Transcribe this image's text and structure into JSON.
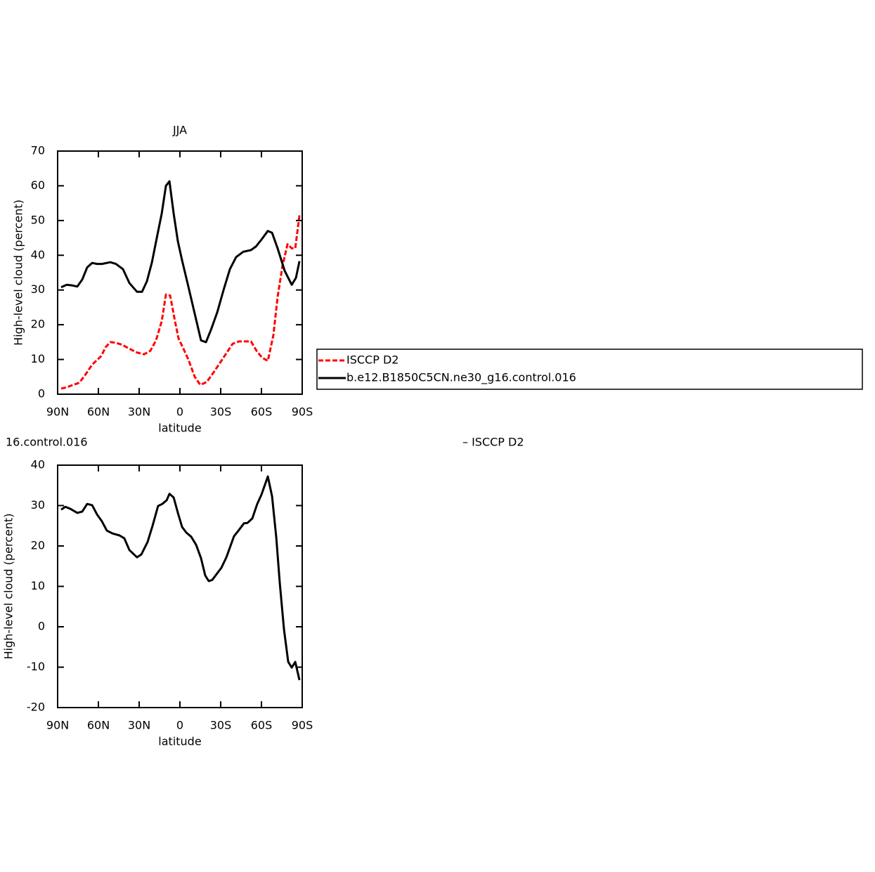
{
  "chart_data": [
    {
      "type": "line",
      "title": "JJA",
      "xlabel": "latitude",
      "ylabel": "High-level cloud (percent)",
      "xlim": [
        90,
        -90
      ],
      "xticks": [
        {
          "value": 90,
          "label": "90N"
        },
        {
          "value": 60,
          "label": "60N"
        },
        {
          "value": 30,
          "label": "30N"
        },
        0,
        {
          "value": -30,
          "label": "30S"
        },
        {
          "value": -60,
          "label": "60S"
        },
        {
          "value": -90,
          "label": "90S"
        }
      ],
      "ylim": [
        0,
        70
      ],
      "yticks": [
        0,
        10,
        20,
        30,
        40,
        50,
        60,
        70
      ],
      "legend": true,
      "series": [
        {
          "name": "ISCCP D2",
          "color": "#ff0000",
          "dash": true,
          "x": [
            87.4,
            83.3,
            79.1,
            74,
            69.8,
            64.6,
            57.9,
            54.8,
            51.2,
            47.1,
            42.4,
            36.7,
            31.6,
            26.4,
            21.7,
            17.6,
            13.4,
            10.3,
            7.2,
            3.6,
            1,
            -2.1,
            -6.2,
            -10.9,
            -15,
            -19.7,
            -24.3,
            -29.5,
            -34.2,
            -38.8,
            -43.5,
            -47.6,
            -52.3,
            -56.4,
            -60.5,
            -64.7,
            -68.8,
            -71.9,
            -75.5,
            -79.2,
            -82.3,
            -84.9,
            -88
          ],
          "values": [
            1.6,
            2,
            2.6,
            3.3,
            5.5,
            8.5,
            11,
            13.5,
            15,
            14.8,
            14.2,
            13,
            12,
            11.5,
            12.5,
            15.5,
            21,
            28.7,
            28.4,
            21,
            16,
            13.5,
            10,
            5,
            2.7,
            3.5,
            6,
            9,
            11.8,
            14.5,
            15.2,
            15.2,
            15.2,
            12.5,
            10.5,
            9.6,
            17,
            28,
            37,
            43.2,
            42,
            42,
            51.5
          ]
        },
        {
          "name": "b.e12.B1850C5CN.ne30_g16.control.016",
          "color": "#000000",
          "dash": false,
          "x": [
            87.4,
            83.3,
            79.1,
            75.5,
            71.9,
            68.3,
            64.6,
            61,
            57.4,
            51.2,
            47.1,
            41.9,
            37.2,
            31.6,
            27.9,
            24.3,
            20.6,
            16.5,
            13.4,
            10.3,
            7.7,
            4.6,
            1.5,
            -1.6,
            -6.2,
            -10.4,
            -15.5,
            -19.2,
            -22.8,
            -27.4,
            -32.1,
            -36.8,
            -41.4,
            -46.6,
            -52.3,
            -55.9,
            -60,
            -64.7,
            -67.8,
            -71.9,
            -77.1,
            -82.3,
            -85.4,
            -88
          ],
          "values": [
            30.8,
            31.5,
            31.3,
            31,
            33,
            36.5,
            37.8,
            37.5,
            37.5,
            38,
            37.5,
            36,
            32,
            29.5,
            29.5,
            32.5,
            38,
            46,
            52,
            60,
            61.3,
            52,
            44,
            38.5,
            31,
            24,
            15.5,
            15,
            18.5,
            23.5,
            30,
            36,
            39.5,
            41,
            41.5,
            42.5,
            44.5,
            47,
            46.5,
            42,
            35.5,
            31.5,
            33.5,
            38.3
          ]
        }
      ]
    },
    {
      "type": "line",
      "title_left": "16.control.016",
      "title_right": "– ISCCP D2",
      "xlabel": "latitude",
      "ylabel": "High-level cloud (percent)",
      "xlim": [
        90,
        -90
      ],
      "xticks": [
        {
          "value": 90,
          "label": "90N"
        },
        {
          "value": 60,
          "label": "60N"
        },
        {
          "value": 30,
          "label": "30N"
        },
        0,
        {
          "value": -30,
          "label": "30S"
        },
        {
          "value": -60,
          "label": "60S"
        },
        {
          "value": -90,
          "label": "90S"
        }
      ],
      "ylim": [
        -20,
        40
      ],
      "yticks": [
        -20,
        -10,
        0,
        10,
        20,
        30,
        40
      ],
      "legend": false,
      "series": [
        {
          "color": "#000000",
          "dash": false,
          "x": [
            87.4,
            84.3,
            80.7,
            75.5,
            71.9,
            68.3,
            64.6,
            61,
            57.4,
            53.8,
            49.6,
            44.5,
            40.9,
            37.2,
            31.6,
            28.4,
            23.8,
            20.2,
            16.1,
            13,
            9.8,
            7.7,
            4.6,
            1.5,
            -1.6,
            -4.7,
            -8.3,
            -11.9,
            -15.5,
            -18.6,
            -21.2,
            -23.8,
            -30.5,
            -34.2,
            -39.8,
            -42.9,
            -47.1,
            -49.7,
            -53.3,
            -56.9,
            -60,
            -64.7,
            -67.8,
            -70.9,
            -73.5,
            -76.6,
            -79.7,
            -82.3,
            -84.9,
            -88
          ],
          "values": [
            29,
            29.7,
            29.2,
            28.2,
            28.5,
            30.4,
            30.1,
            27.8,
            26.1,
            23.8,
            23.1,
            22.6,
            21.9,
            19,
            17.2,
            17.9,
            21,
            24.9,
            29.9,
            30.4,
            31.3,
            32.9,
            32,
            28.2,
            24.7,
            23.3,
            22.3,
            20.3,
            17,
            12.7,
            11.3,
            11.6,
            14.6,
            17.2,
            22.4,
            23.7,
            25.6,
            25.7,
            26.8,
            30.4,
            32.7,
            37.2,
            32.3,
            22.1,
            10.8,
            -0.7,
            -8.7,
            -10.1,
            -8.7,
            -13.2
          ]
        }
      ]
    }
  ]
}
